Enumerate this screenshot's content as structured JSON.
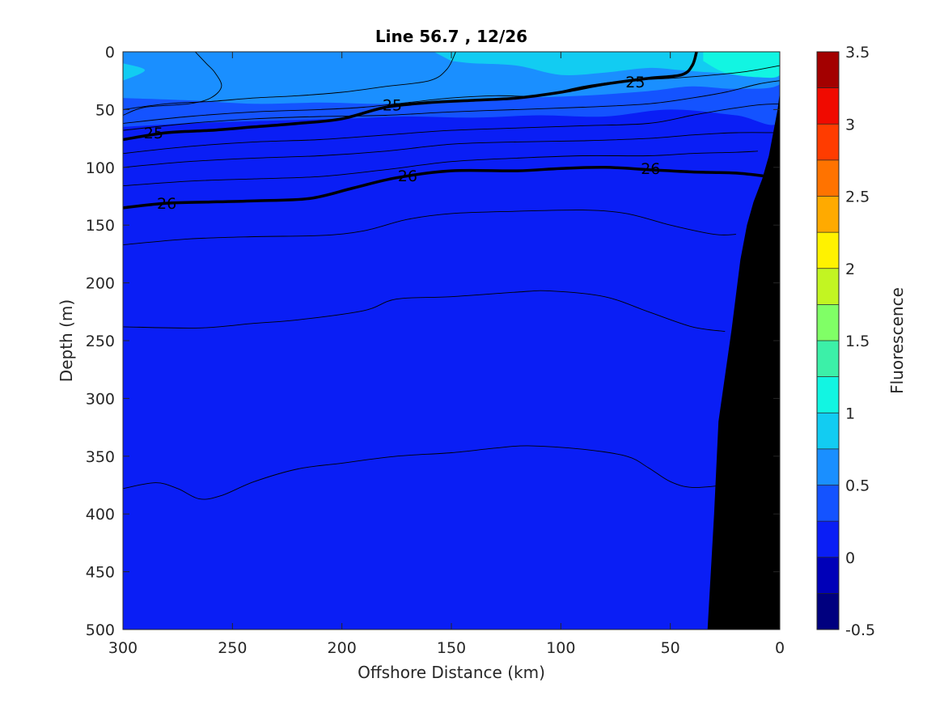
{
  "chart_data": {
    "type": "heatmap",
    "title": "Line 56.7 , 12/26",
    "xlabel": "Offshore Distance (km)",
    "ylabel": "Depth (m)",
    "colorbar_label": "Fluorescence",
    "xlim": [
      300,
      0
    ],
    "ylim": [
      0,
      500
    ],
    "x_ticks": [
      300,
      250,
      200,
      150,
      100,
      50,
      0
    ],
    "y_ticks": [
      0,
      50,
      100,
      150,
      200,
      250,
      300,
      350,
      400,
      450,
      500
    ],
    "colorbar_range": [
      -0.5,
      3.5
    ],
    "colorbar_ticks": [
      {
        "value": 3.5,
        "label": "3.5"
      },
      {
        "value": 3,
        "label": "3"
      },
      {
        "value": 2.5,
        "label": "2.5"
      },
      {
        "value": 2,
        "label": "2"
      },
      {
        "value": 1.5,
        "label": "1.5"
      },
      {
        "value": 1,
        "label": "1"
      },
      {
        "value": 0.5,
        "label": "0.5"
      },
      {
        "value": 0,
        "label": "0"
      },
      {
        "value": -0.5,
        "label": "-0.5"
      }
    ],
    "colorbar_levels": [
      {
        "from": -0.5,
        "to": -0.25,
        "color": "#00007f"
      },
      {
        "from": -0.25,
        "to": 0,
        "color": "#0000b8"
      },
      {
        "from": 0,
        "to": 0.25,
        "color": "#0a1ef5"
      },
      {
        "from": 0.25,
        "to": 0.5,
        "color": "#1453ff"
      },
      {
        "from": 0.5,
        "to": 0.75,
        "color": "#1a8fff"
      },
      {
        "from": 0.75,
        "to": 1,
        "color": "#12ccf2"
      },
      {
        "from": 1,
        "to": 1.25,
        "color": "#12f5e2"
      },
      {
        "from": 1.25,
        "to": 1.5,
        "color": "#3cf0a8"
      },
      {
        "from": 1.5,
        "to": 1.75,
        "color": "#80ff66"
      },
      {
        "from": 1.75,
        "to": 2,
        "color": "#c2f522"
      },
      {
        "from": 2,
        "to": 2.25,
        "color": "#fff200"
      },
      {
        "from": 2.25,
        "to": 2.5,
        "color": "#ffaa00"
      },
      {
        "from": 2.5,
        "to": 2.75,
        "color": "#ff7300"
      },
      {
        "from": 2.75,
        "to": 3,
        "color": "#ff3c00"
      },
      {
        "from": 3,
        "to": 3.25,
        "color": "#f00a00"
      },
      {
        "from": 3.25,
        "to": 3.5,
        "color": "#a30000"
      }
    ],
    "fluorescence_regions": [
      {
        "level": "0-0.25",
        "color": "#0a1ef5",
        "polygon": [
          [
            300,
            0
          ],
          [
            0,
            0
          ],
          [
            0,
            500
          ],
          [
            300,
            500
          ]
        ]
      },
      {
        "level": "0.25-0.5",
        "color": "#1453ff",
        "polygon": [
          [
            300,
            0
          ],
          [
            0,
            0
          ],
          [
            0,
            60
          ],
          [
            20,
            55
          ],
          [
            50,
            50
          ],
          [
            80,
            56
          ],
          [
            110,
            55
          ],
          [
            140,
            57
          ],
          [
            170,
            56
          ],
          [
            200,
            58
          ],
          [
            240,
            60
          ],
          [
            270,
            62
          ],
          [
            300,
            65
          ]
        ]
      },
      {
        "level": "0.5-0.75",
        "color": "#1a8fff",
        "polygon": [
          [
            300,
            0
          ],
          [
            0,
            0
          ],
          [
            0,
            28
          ],
          [
            20,
            32
          ],
          [
            40,
            30
          ],
          [
            60,
            34
          ],
          [
            90,
            38
          ],
          [
            120,
            40
          ],
          [
            150,
            42
          ],
          [
            180,
            45
          ],
          [
            210,
            44
          ],
          [
            240,
            45
          ],
          [
            270,
            42
          ],
          [
            300,
            40
          ]
        ]
      },
      {
        "level": "0.75-1",
        "color": "#12ccf2",
        "polygon": [
          [
            158,
            0
          ],
          [
            0,
            0
          ],
          [
            0,
            20
          ],
          [
            30,
            18
          ],
          [
            45,
            16
          ],
          [
            60,
            14
          ],
          [
            80,
            18
          ],
          [
            100,
            20
          ],
          [
            120,
            12
          ],
          [
            140,
            10
          ],
          [
            150,
            8
          ]
        ]
      },
      {
        "level": "0.75-1",
        "color": "#12ccf2",
        "polygon": [
          [
            300,
            10
          ],
          [
            290,
            16
          ],
          [
            300,
            25
          ]
        ]
      },
      {
        "level": "1-1.25",
        "color": "#12f5e2",
        "polygon": [
          [
            35,
            0
          ],
          [
            0,
            0
          ],
          [
            0,
            20
          ],
          [
            10,
            22
          ],
          [
            25,
            18
          ],
          [
            35,
            8
          ]
        ]
      }
    ],
    "density_contours": [
      {
        "label": "25",
        "bold": true,
        "points": [
          [
            300,
            76
          ],
          [
            280,
            70
          ],
          [
            260,
            68
          ],
          [
            240,
            65
          ],
          [
            220,
            62
          ],
          [
            200,
            58
          ],
          [
            180,
            48
          ],
          [
            160,
            44
          ],
          [
            140,
            42
          ],
          [
            120,
            40
          ],
          [
            100,
            35
          ],
          [
            80,
            28
          ],
          [
            60,
            23
          ],
          [
            45,
            20
          ],
          [
            40,
            12
          ],
          [
            38,
            0
          ]
        ],
        "label_positions": [
          [
            286,
            70
          ],
          [
            177,
            46
          ],
          [
            66,
            26
          ]
        ]
      },
      {
        "label": "26",
        "bold": true,
        "points": [
          [
            300,
            135
          ],
          [
            280,
            131
          ],
          [
            260,
            130
          ],
          [
            240,
            129
          ],
          [
            215,
            127
          ],
          [
            195,
            118
          ],
          [
            175,
            109
          ],
          [
            150,
            103
          ],
          [
            120,
            103
          ],
          [
            100,
            101
          ],
          [
            80,
            100
          ],
          [
            60,
            102
          ],
          [
            40,
            104
          ],
          [
            20,
            105
          ],
          [
            5,
            108
          ]
        ],
        "label_positions": [
          [
            280,
            131
          ],
          [
            170,
            107
          ],
          [
            59,
            101
          ]
        ]
      }
    ],
    "thin_contours": [
      [
        [
          300,
          55
        ],
        [
          290,
          48
        ],
        [
          270,
          45
        ],
        [
          260,
          40
        ],
        [
          255,
          30
        ],
        [
          258,
          18
        ],
        [
          262,
          10
        ],
        [
          267,
          0
        ]
      ],
      [
        [
          300,
          50
        ],
        [
          280,
          45
        ],
        [
          260,
          43
        ],
        [
          240,
          40
        ],
        [
          220,
          38
        ],
        [
          200,
          35
        ],
        [
          180,
          30
        ],
        [
          160,
          25
        ],
        [
          152,
          15
        ],
        [
          148,
          0
        ]
      ],
      [
        [
          300,
          62
        ],
        [
          270,
          56
        ],
        [
          240,
          52
        ],
        [
          210,
          50
        ],
        [
          190,
          48
        ],
        [
          170,
          44
        ],
        [
          150,
          40
        ],
        [
          130,
          38
        ],
        [
          110,
          38
        ],
        [
          90,
          30
        ],
        [
          70,
          25
        ],
        [
          50,
          23
        ],
        [
          30,
          20
        ],
        [
          15,
          17
        ],
        [
          0,
          12
        ]
      ],
      [
        [
          300,
          68
        ],
        [
          270,
          62
        ],
        [
          240,
          58
        ],
        [
          210,
          56
        ],
        [
          180,
          55
        ],
        [
          150,
          52
        ],
        [
          120,
          50
        ],
        [
          90,
          48
        ],
        [
          60,
          45
        ],
        [
          40,
          40
        ],
        [
          25,
          35
        ],
        [
          10,
          28
        ],
        [
          0,
          25
        ]
      ],
      [
        [
          300,
          88
        ],
        [
          270,
          82
        ],
        [
          240,
          78
        ],
        [
          210,
          76
        ],
        [
          180,
          72
        ],
        [
          150,
          68
        ],
        [
          120,
          66
        ],
        [
          90,
          64
        ],
        [
          60,
          62
        ],
        [
          40,
          55
        ],
        [
          25,
          50
        ],
        [
          10,
          46
        ],
        [
          0,
          45
        ]
      ],
      [
        [
          300,
          100
        ],
        [
          270,
          95
        ],
        [
          240,
          92
        ],
        [
          210,
          90
        ],
        [
          180,
          86
        ],
        [
          150,
          80
        ],
        [
          120,
          78
        ],
        [
          90,
          77
        ],
        [
          60,
          75
        ],
        [
          40,
          72
        ],
        [
          20,
          70
        ],
        [
          0,
          70
        ]
      ],
      [
        [
          300,
          116
        ],
        [
          270,
          112
        ],
        [
          240,
          110
        ],
        [
          210,
          108
        ],
        [
          180,
          102
        ],
        [
          150,
          95
        ],
        [
          120,
          92
        ],
        [
          90,
          90
        ],
        [
          60,
          90
        ],
        [
          40,
          88
        ],
        [
          20,
          87
        ],
        [
          10,
          86
        ]
      ],
      [
        [
          300,
          167
        ],
        [
          270,
          162
        ],
        [
          240,
          160
        ],
        [
          210,
          159
        ],
        [
          190,
          155
        ],
        [
          170,
          145
        ],
        [
          150,
          140
        ],
        [
          120,
          138
        ],
        [
          90,
          137
        ],
        [
          70,
          140
        ],
        [
          50,
          150
        ],
        [
          30,
          158
        ],
        [
          20,
          158
        ]
      ],
      [
        [
          300,
          238
        ],
        [
          265,
          239
        ],
        [
          240,
          235
        ],
        [
          220,
          232
        ],
        [
          190,
          224
        ],
        [
          175,
          214
        ],
        [
          150,
          212
        ],
        [
          120,
          208
        ],
        [
          105,
          207
        ],
        [
          80,
          212
        ],
        [
          60,
          225
        ],
        [
          40,
          238
        ],
        [
          25,
          242
        ]
      ],
      [
        [
          300,
          378
        ],
        [
          285,
          373
        ],
        [
          275,
          378
        ],
        [
          265,
          387
        ],
        [
          255,
          384
        ],
        [
          240,
          372
        ],
        [
          220,
          361
        ],
        [
          200,
          356
        ],
        [
          175,
          350
        ],
        [
          150,
          347
        ],
        [
          130,
          343
        ],
        [
          115,
          341
        ],
        [
          90,
          344
        ],
        [
          70,
          350
        ],
        [
          60,
          360
        ],
        [
          50,
          372
        ],
        [
          40,
          377
        ],
        [
          25,
          375
        ]
      ]
    ],
    "bathymetry_polygon": [
      [
        33,
        500
      ],
      [
        30,
        400
      ],
      [
        28,
        320
      ],
      [
        22,
        240
      ],
      [
        18,
        180
      ],
      [
        15,
        150
      ],
      [
        12,
        130
      ],
      [
        8,
        110
      ],
      [
        5,
        90
      ],
      [
        3,
        70
      ],
      [
        1,
        50
      ],
      [
        0,
        35
      ],
      [
        0,
        500
      ]
    ]
  }
}
